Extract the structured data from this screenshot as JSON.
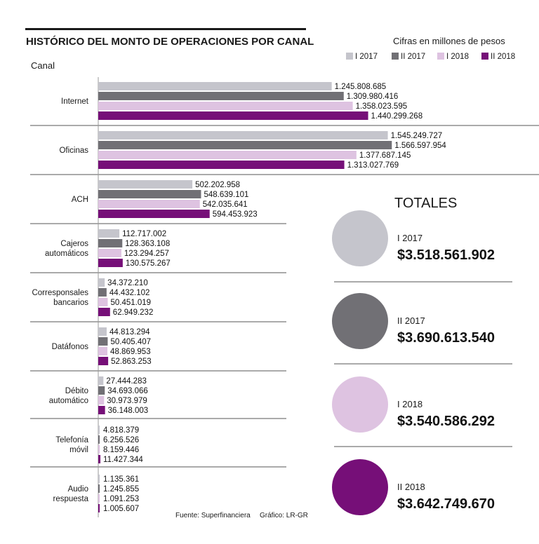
{
  "chart_data": {
    "type": "bar",
    "orientation": "horizontal",
    "title": "HISTÓRICO DEL MONTO DE OPERACIONES POR CANAL",
    "units_note": "Cifras en millones de pesos",
    "ylabel": "Canal",
    "categories": [
      [
        "Internet"
      ],
      [
        "Oficinas"
      ],
      [
        "ACH"
      ],
      [
        "Cajeros",
        "automáticos"
      ],
      [
        "Corresponsales",
        "bancarios"
      ],
      [
        "Datáfonos"
      ],
      [
        "Débito",
        "automático"
      ],
      [
        "Telefonía",
        "móvil"
      ],
      [
        "Audio",
        "respuesta"
      ]
    ],
    "series": [
      {
        "name": "I 2017",
        "color": "#c5c5cc",
        "values": [
          1245808685,
          1545249727,
          502202958,
          112717002,
          34372210,
          44813294,
          27444283,
          4818379,
          1135361
        ],
        "labels": [
          "1.245.808.685",
          "1.545.249.727",
          "502.202.958",
          "112.717.002",
          "34.372.210",
          "44.813.294",
          "27.444.283",
          "4.818.379",
          "1.135.361"
        ]
      },
      {
        "name": "II 2017",
        "color": "#717075",
        "values": [
          1309980416,
          1566597954,
          548639101,
          128363108,
          44432102,
          50405407,
          34693066,
          6256526,
          1245855
        ],
        "labels": [
          "1.309.980.416",
          "1.566.597.954",
          "548.639.101",
          "128.363.108",
          "44.432.102",
          "50.405.407",
          "34.693.066",
          "6.256.526",
          "1.245.855"
        ]
      },
      {
        "name": "I 2018",
        "color": "#dec3e1",
        "values": [
          1358023595,
          1377687145,
          542035641,
          123294257,
          50451019,
          48869953,
          30973979,
          8159446,
          1091253
        ],
        "labels": [
          "1.358.023.595",
          "1.377.687.145",
          "542.035.641",
          "123.294.257",
          "50.451.019",
          "48.869.953",
          "30.973.979",
          "8.159.446",
          "1.091.253"
        ]
      },
      {
        "name": "II 2018",
        "color": "#760f78",
        "values": [
          1440299268,
          1313027769,
          594453923,
          130575267,
          62949232,
          52863253,
          36148003,
          11427344,
          1005607
        ],
        "labels": [
          "1.440.299.268",
          "1.313.027.769",
          "594.453.923",
          "130.575.267",
          "62.949.232",
          "52.863.253",
          "36.148.003",
          "11.427.344",
          "1.005.607"
        ]
      }
    ],
    "totals_title": "TOTALES",
    "totals": [
      {
        "name": "I 2017",
        "value": "$3.518.561.902",
        "color": "#c5c5cc"
      },
      {
        "name": "II 2017",
        "value": "$3.690.613.540",
        "color": "#717075"
      },
      {
        "name": "I 2018",
        "value": "$3.540.586.292",
        "color": "#dec3e1"
      },
      {
        "name": "II 2018",
        "value": "$3.642.749.670",
        "color": "#760f78"
      }
    ],
    "source": "Fuente: Superfinanciera",
    "credit": "Gráfico: LR-GR"
  }
}
